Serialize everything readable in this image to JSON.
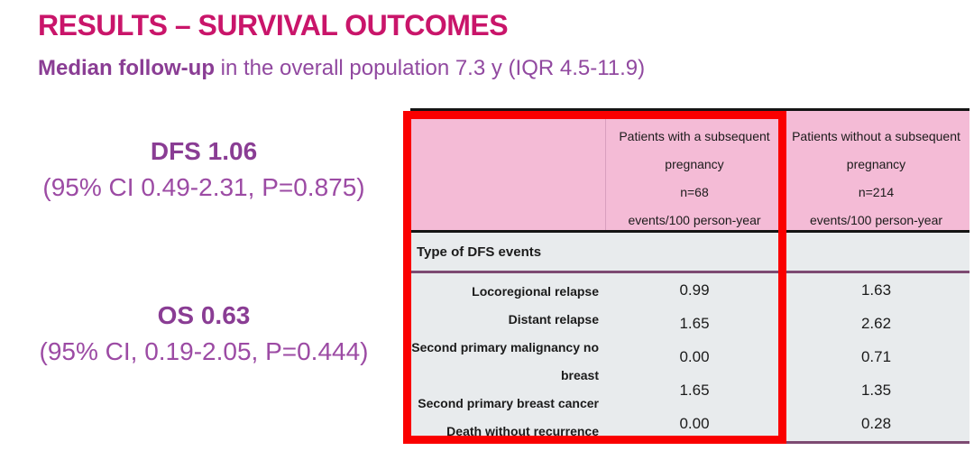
{
  "slide": {
    "title": "RESULTS – SURVIVAL OUTCOMES",
    "subtitle_bold": "Median follow-up",
    "subtitle_rest": " in the overall population 7.3 y (IQR 4.5-11.9)"
  },
  "stats": {
    "dfs_headline": "DFS 1.06",
    "dfs_detail": "(95% CI 0.49-2.31, P=0.875)",
    "os_headline": "OS 0.63",
    "os_detail": "(95% CI, 0.19-2.05, P=0.444)"
  },
  "table": {
    "col_with": {
      "lines": [
        "Patients with a subsequent",
        "pregnancy",
        "n=68",
        "events/100 person-year"
      ]
    },
    "col_without": {
      "lines": [
        "Patients without a subsequent",
        "pregnancy",
        "n=214",
        "events/100 person-year"
      ]
    },
    "section_header": "Type of DFS events",
    "rows": [
      {
        "label": "Locoregional relapse",
        "with_pregnancy": "0.99",
        "without_pregnancy": "1.63"
      },
      {
        "label": "Distant relapse",
        "with_pregnancy": "1.65",
        "without_pregnancy": "2.62"
      },
      {
        "label": "Second primary malignancy no breast",
        "with_pregnancy": "0.00",
        "without_pregnancy": "0.71"
      },
      {
        "label": "Second primary breast cancer",
        "with_pregnancy": "1.65",
        "without_pregnancy": "1.35"
      },
      {
        "label": "Death without recurrence",
        "with_pregnancy": "0.00",
        "without_pregnancy": "0.28"
      }
    ]
  },
  "colors": {
    "title_magenta": "#C9156A",
    "purple_text": "#9C4BA4",
    "pink_header_bg": "#F4BBD6",
    "gray_body_bg": "#E8EBED",
    "purple_rule": "#7D4A72",
    "red_highlight": "#FA0000"
  }
}
